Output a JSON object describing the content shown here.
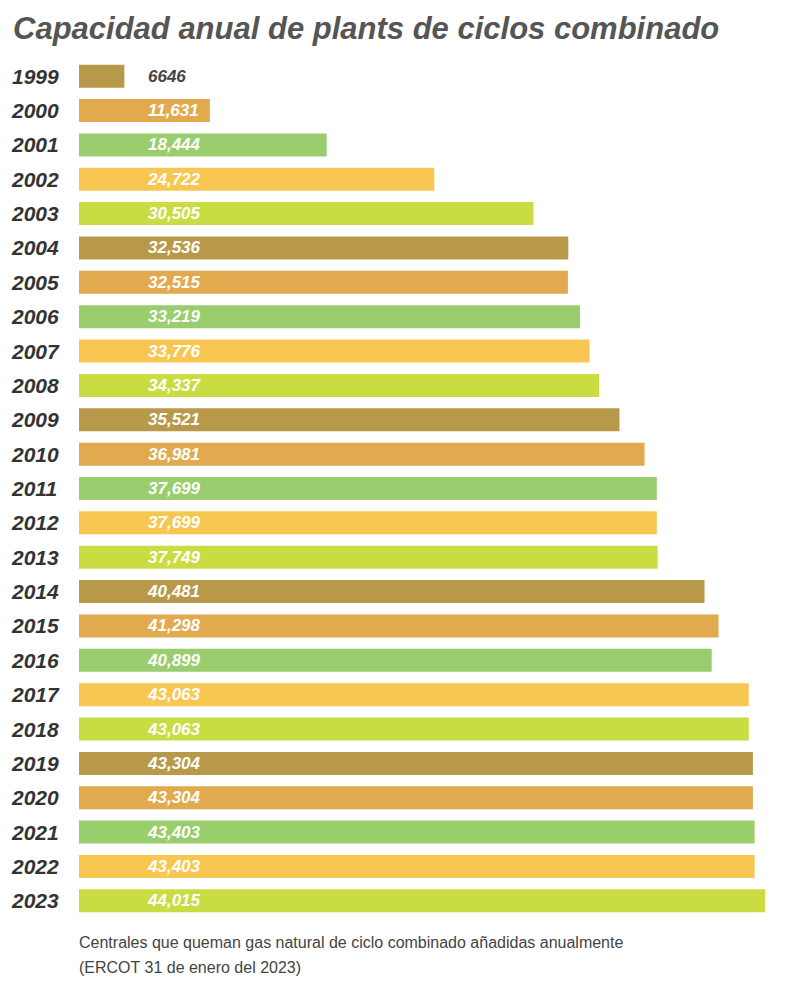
{
  "chart_data": {
    "type": "bar",
    "orientation": "horizontal",
    "title": "Capacidad anual de plants de ciclos combinado",
    "annotations": [
      "Centrales que queman gas natural de ciclo combinado añadidas anualmente",
      "(ERCOT 31 de enero del 2023)"
    ],
    "categories": [
      "1999",
      "2000",
      "2001",
      "2002",
      "2003",
      "2004",
      "2005",
      "2006",
      "2007",
      "2008",
      "2009",
      "2010",
      "2011",
      "2012",
      "2013",
      "2014",
      "2015",
      "2016",
      "2017",
      "2018",
      "2019",
      "2020",
      "2021",
      "2022",
      "2023"
    ],
    "values": [
      6646,
      11631,
      18444,
      24722,
      30505,
      32536,
      32515,
      33219,
      33776,
      34337,
      35521,
      36981,
      37699,
      37699,
      37749,
      40481,
      41298,
      40899,
      43063,
      43063,
      43304,
      43304,
      43403,
      43403,
      44015
    ],
    "value_labels": [
      "6646",
      "11,631",
      "18,444",
      "24,722",
      "30,505",
      "32,536",
      "32,515",
      "33,219",
      "33,776",
      "34,337",
      "35,521",
      "36,981",
      "37,699",
      "37,699",
      "37,749",
      "40,481",
      "41,298",
      "40,899",
      "43,063",
      "43,063",
      "43,304",
      "43,304",
      "43,403",
      "43,403",
      "44,015"
    ],
    "colors": [
      "#b8994a",
      "#e1aa4e",
      "#99cd6d",
      "#f8c752",
      "#c9dc42",
      "#b8994a",
      "#e1aa4e",
      "#99cd6d",
      "#f8c752",
      "#c9dc42",
      "#b8994a",
      "#e1aa4e",
      "#99cd6d",
      "#f8c752",
      "#c9dc42",
      "#b8994a",
      "#e1aa4e",
      "#99cd6d",
      "#f8c752",
      "#c9dc42",
      "#b8994a",
      "#e1aa4e",
      "#99cd6d",
      "#f8c752",
      "#c9dc42"
    ],
    "xlim": [
      4000,
      45000
    ],
    "xticks": [
      4000,
      45000
    ],
    "grid": false,
    "tick_labels": "y",
    "data_labels": true
  }
}
